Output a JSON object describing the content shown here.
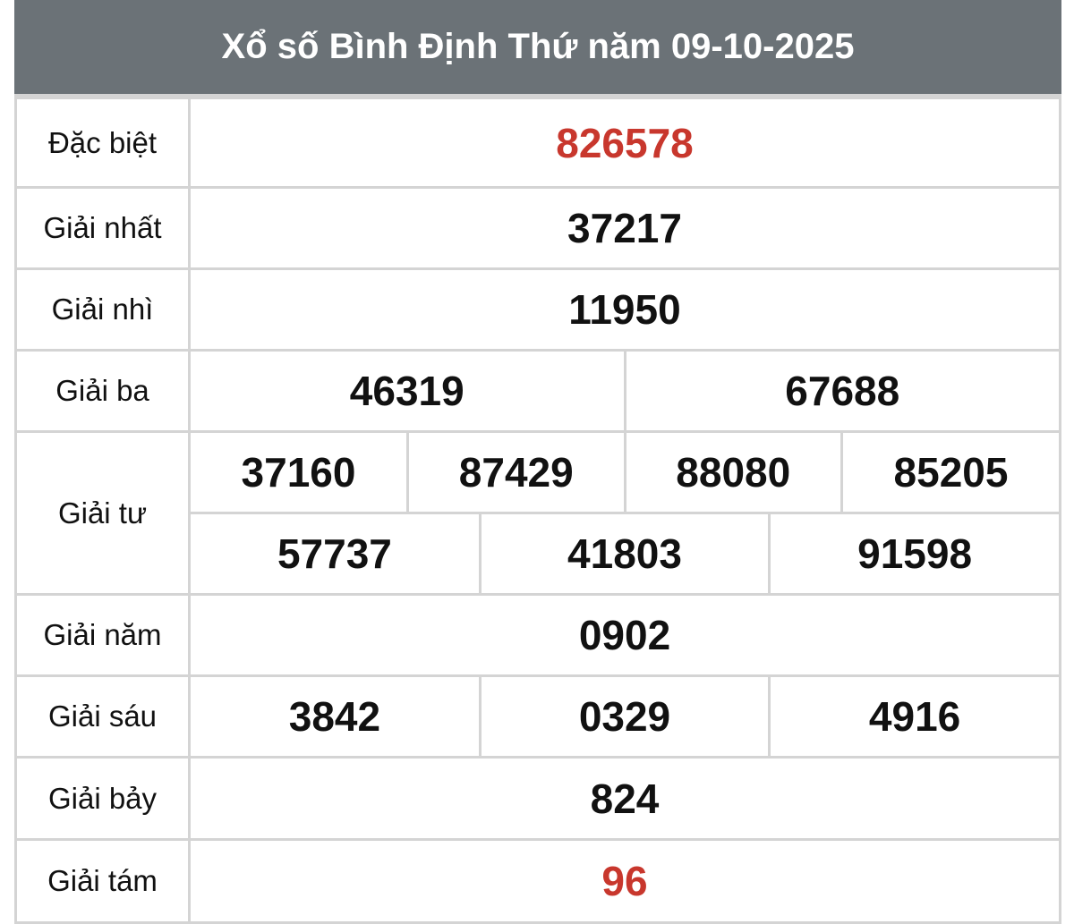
{
  "title": "Xổ số Bình Định Thứ năm 09-10-2025",
  "prizes": [
    {
      "label": "Đặc biệt",
      "numbers": [
        "826578"
      ]
    },
    {
      "label": "Giải nhất",
      "numbers": [
        "37217"
      ]
    },
    {
      "label": "Giải nhì",
      "numbers": [
        "11950"
      ]
    },
    {
      "label": "Giải ba",
      "numbers": [
        "46319",
        "67688"
      ]
    },
    {
      "label": "Giải tư",
      "numbers": [
        "37160",
        "87429",
        "88080",
        "85205",
        "57737",
        "41803",
        "91598"
      ]
    },
    {
      "label": "Giải năm",
      "numbers": [
        "0902"
      ]
    },
    {
      "label": "Giải sáu",
      "numbers": [
        "3842",
        "0329",
        "4916"
      ]
    },
    {
      "label": "Giải bảy",
      "numbers": [
        "824"
      ]
    },
    {
      "label": "Giải tám",
      "numbers": [
        "96"
      ]
    }
  ],
  "colors": {
    "header_bg": "#6b7277",
    "highlight": "#c8372d"
  }
}
